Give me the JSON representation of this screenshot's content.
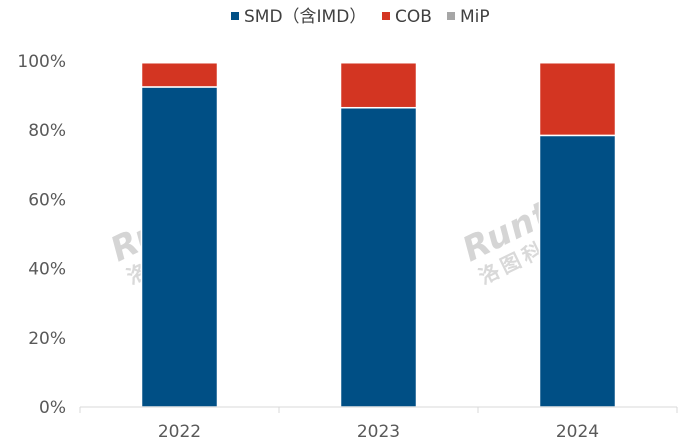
{
  "watermark": {
    "brand": "Runto",
    "cn": "洛图科技"
  },
  "chart_data": {
    "type": "bar",
    "stacked": true,
    "categories": [
      "2022",
      "2023",
      "2024"
    ],
    "series": [
      {
        "name": "SMD（含IMD）",
        "color": "#004f85",
        "values": [
          92.5,
          86.5,
          78.5
        ]
      },
      {
        "name": "COB",
        "color": "#d33522",
        "values": [
          7.0,
          13.0,
          21.0
        ]
      },
      {
        "name": "MiP",
        "color": "#a6a6a6",
        "values": [
          0,
          0,
          0
        ]
      }
    ],
    "y_ticks": [
      "0%",
      "20%",
      "40%",
      "60%",
      "80%",
      "100%"
    ],
    "ylim": [
      0,
      100
    ],
    "grid": false,
    "legend": "top-center",
    "title": "",
    "xlabel": "",
    "ylabel": ""
  }
}
